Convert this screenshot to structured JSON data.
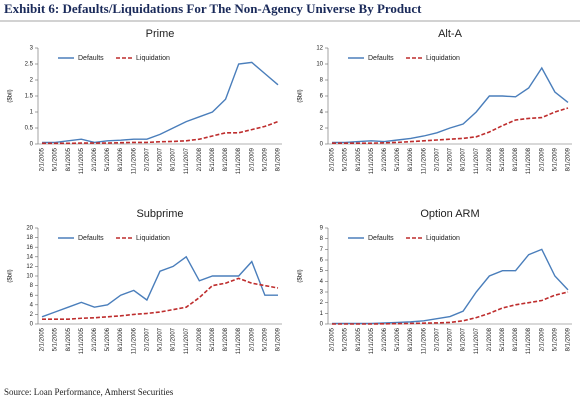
{
  "header": {
    "title": "Exhibit 6:  Defaults/Liquidations For The Non-Agency Universe By Product"
  },
  "source": "Source: Loan Performance, Amherst Securities",
  "chart_data": [
    {
      "type": "line",
      "title": "Prime",
      "ylabel": "($bil)",
      "categories": [
        "2/1/2005",
        "5/1/2005",
        "8/1/2005",
        "11/1/2005",
        "2/1/2006",
        "5/1/2006",
        "8/1/2006",
        "11/1/2006",
        "2/1/2007",
        "5/1/2007",
        "8/1/2007",
        "11/1/2007",
        "2/1/2008",
        "5/1/2008",
        "8/1/2008",
        "11/1/2008",
        "2/1/2009",
        "5/1/2009",
        "8/1/2009"
      ],
      "series": [
        {
          "name": "Defaults",
          "color": "#4a7ebb",
          "values": [
            0.05,
            0.05,
            0.1,
            0.15,
            0.05,
            0.1,
            0.12,
            0.15,
            0.15,
            0.3,
            0.5,
            0.7,
            0.85,
            1.0,
            1.4,
            2.5,
            2.55,
            2.2,
            1.85
          ]
        },
        {
          "name": "Liquidation",
          "color": "#be2d2d",
          "values": [
            0.02,
            0.02,
            0.02,
            0.03,
            0.03,
            0.03,
            0.04,
            0.05,
            0.05,
            0.07,
            0.08,
            0.1,
            0.15,
            0.25,
            0.35,
            0.35,
            0.45,
            0.55,
            0.7
          ]
        }
      ],
      "ylim": [
        0,
        3
      ],
      "yticks": [
        0,
        0.5,
        1,
        1.5,
        2,
        2.5,
        3
      ]
    },
    {
      "type": "line",
      "title": "Alt-A",
      "ylabel": "($bil)",
      "categories": [
        "2/1/2005",
        "5/1/2005",
        "8/1/2005",
        "11/1/2005",
        "2/1/2006",
        "5/1/2006",
        "8/1/2006",
        "11/1/2006",
        "2/1/2007",
        "5/1/2007",
        "8/1/2007",
        "11/1/2007",
        "2/1/2008",
        "5/1/2008",
        "8/1/2008",
        "11/1/2008",
        "2/1/2009",
        "5/1/2009",
        "8/1/2009"
      ],
      "series": [
        {
          "name": "Defaults",
          "color": "#4a7ebb",
          "values": [
            0.2,
            0.2,
            0.3,
            0.4,
            0.3,
            0.5,
            0.7,
            1.0,
            1.4,
            2.0,
            2.5,
            4.0,
            6.0,
            6.0,
            5.9,
            7.0,
            9.5,
            6.5,
            5.2
          ]
        },
        {
          "name": "Liquidation",
          "color": "#be2d2d",
          "values": [
            0.1,
            0.1,
            0.1,
            0.1,
            0.15,
            0.2,
            0.3,
            0.4,
            0.5,
            0.6,
            0.7,
            0.9,
            1.5,
            2.3,
            3.0,
            3.2,
            3.3,
            4.0,
            4.5
          ]
        }
      ],
      "ylim": [
        0,
        12
      ],
      "yticks": [
        0,
        2,
        4,
        6,
        8,
        10,
        12
      ]
    },
    {
      "type": "line",
      "title": "Subprime",
      "ylabel": "($bil)",
      "categories": [
        "2/1/2005",
        "5/1/2005",
        "8/1/2005",
        "11/1/2005",
        "2/1/2006",
        "5/1/2006",
        "8/1/2006",
        "11/1/2006",
        "2/1/2007",
        "5/1/2007",
        "8/1/2007",
        "11/1/2007",
        "2/1/2008",
        "5/1/2008",
        "8/1/2008",
        "11/1/2008",
        "2/1/2009",
        "5/1/2009",
        "8/1/2009"
      ],
      "series": [
        {
          "name": "Defaults",
          "color": "#4a7ebb",
          "values": [
            1.5,
            2.5,
            3.5,
            4.5,
            3.5,
            4,
            6,
            7,
            5,
            11,
            12,
            14,
            9,
            10,
            10,
            10,
            13,
            6,
            6
          ]
        },
        {
          "name": "Liquidation",
          "color": "#be2d2d",
          "values": [
            1,
            1,
            1,
            1.2,
            1.3,
            1.5,
            1.7,
            2,
            2.2,
            2.5,
            3,
            3.5,
            5.5,
            8,
            8.5,
            9.5,
            8.5,
            8,
            7.5
          ]
        }
      ],
      "ylim": [
        0,
        20
      ],
      "yticks": [
        0,
        2,
        4,
        6,
        8,
        10,
        12,
        14,
        16,
        18,
        20
      ]
    },
    {
      "type": "line",
      "title": "Option ARM",
      "ylabel": "($bil)",
      "categories": [
        "2/1/2005",
        "5/1/2005",
        "8/1/2005",
        "11/1/2005",
        "2/1/2006",
        "5/1/2006",
        "8/1/2006",
        "11/1/2006",
        "2/1/2007",
        "5/1/2007",
        "8/1/2007",
        "11/1/2007",
        "2/1/2008",
        "5/1/2008",
        "8/1/2008",
        "11/1/2008",
        "2/1/2009",
        "5/1/2009",
        "8/1/2009"
      ],
      "series": [
        {
          "name": "Defaults",
          "color": "#4a7ebb",
          "values": [
            0.05,
            0.05,
            0.05,
            0.05,
            0.1,
            0.15,
            0.2,
            0.3,
            0.5,
            0.7,
            1.2,
            3.0,
            4.5,
            5.0,
            5.0,
            6.5,
            7.0,
            4.5,
            3.2
          ]
        },
        {
          "name": "Liquidation",
          "color": "#be2d2d",
          "values": [
            0,
            0,
            0,
            0,
            0.02,
            0.03,
            0.05,
            0.08,
            0.1,
            0.15,
            0.3,
            0.6,
            1.0,
            1.5,
            1.8,
            2.0,
            2.2,
            2.7,
            3.0
          ]
        }
      ],
      "ylim": [
        0,
        9
      ],
      "yticks": [
        0,
        1,
        2,
        3,
        4,
        5,
        6,
        7,
        8,
        9
      ]
    }
  ]
}
